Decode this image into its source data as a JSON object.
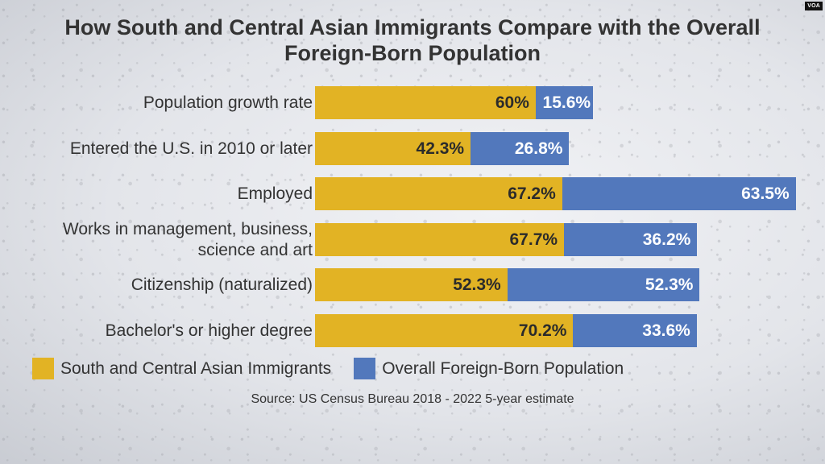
{
  "branding": {
    "logo_text": "VOA"
  },
  "chart_data": {
    "type": "bar",
    "orientation": "horizontal",
    "stacked": true,
    "title": "How South and Central Asian Immigrants Compare with the Overall Foreign-Born Population",
    "title_lines": [
      "How South and Central Asian Immigrants Compare with the Overall",
      "Foreign-Born Population"
    ],
    "categories": [
      "Population growth rate",
      "Entered the U.S. in 2010 or later",
      "Employed",
      "Works in management, business, science and art",
      "Citizenship (naturalized)",
      "Bachelor's or higher degree"
    ],
    "category_lines": [
      [
        "Population growth rate"
      ],
      [
        "Entered the U.S. in 2010 or later"
      ],
      [
        "Employed"
      ],
      [
        "Works in management, business,",
        "science and art"
      ],
      [
        "Citizenship (naturalized)"
      ],
      [
        "Bachelor's or higher degree"
      ]
    ],
    "series": [
      {
        "name": "South and Central Asian Immigrants",
        "color": "#e2b324",
        "values": [
          60,
          42.3,
          67.2,
          67.7,
          52.3,
          70.2
        ],
        "labels": [
          "60%",
          "42.3%",
          "67.2%",
          "67.7%",
          "52.3%",
          "70.2%"
        ]
      },
      {
        "name": "Overall Foreign-Born Population",
        "color": "#5278bc",
        "values": [
          15.6,
          26.8,
          63.5,
          36.2,
          52.3,
          33.6
        ],
        "labels": [
          "15.6%",
          "26.8%",
          "63.5%",
          "36.2%",
          "52.3%",
          "33.6%"
        ]
      }
    ],
    "xlabel": "",
    "ylabel": "",
    "grid": false,
    "legend_position": "bottom-left",
    "source": "Source: US Census Bureau 2018 - 2022 5-year estimate"
  }
}
